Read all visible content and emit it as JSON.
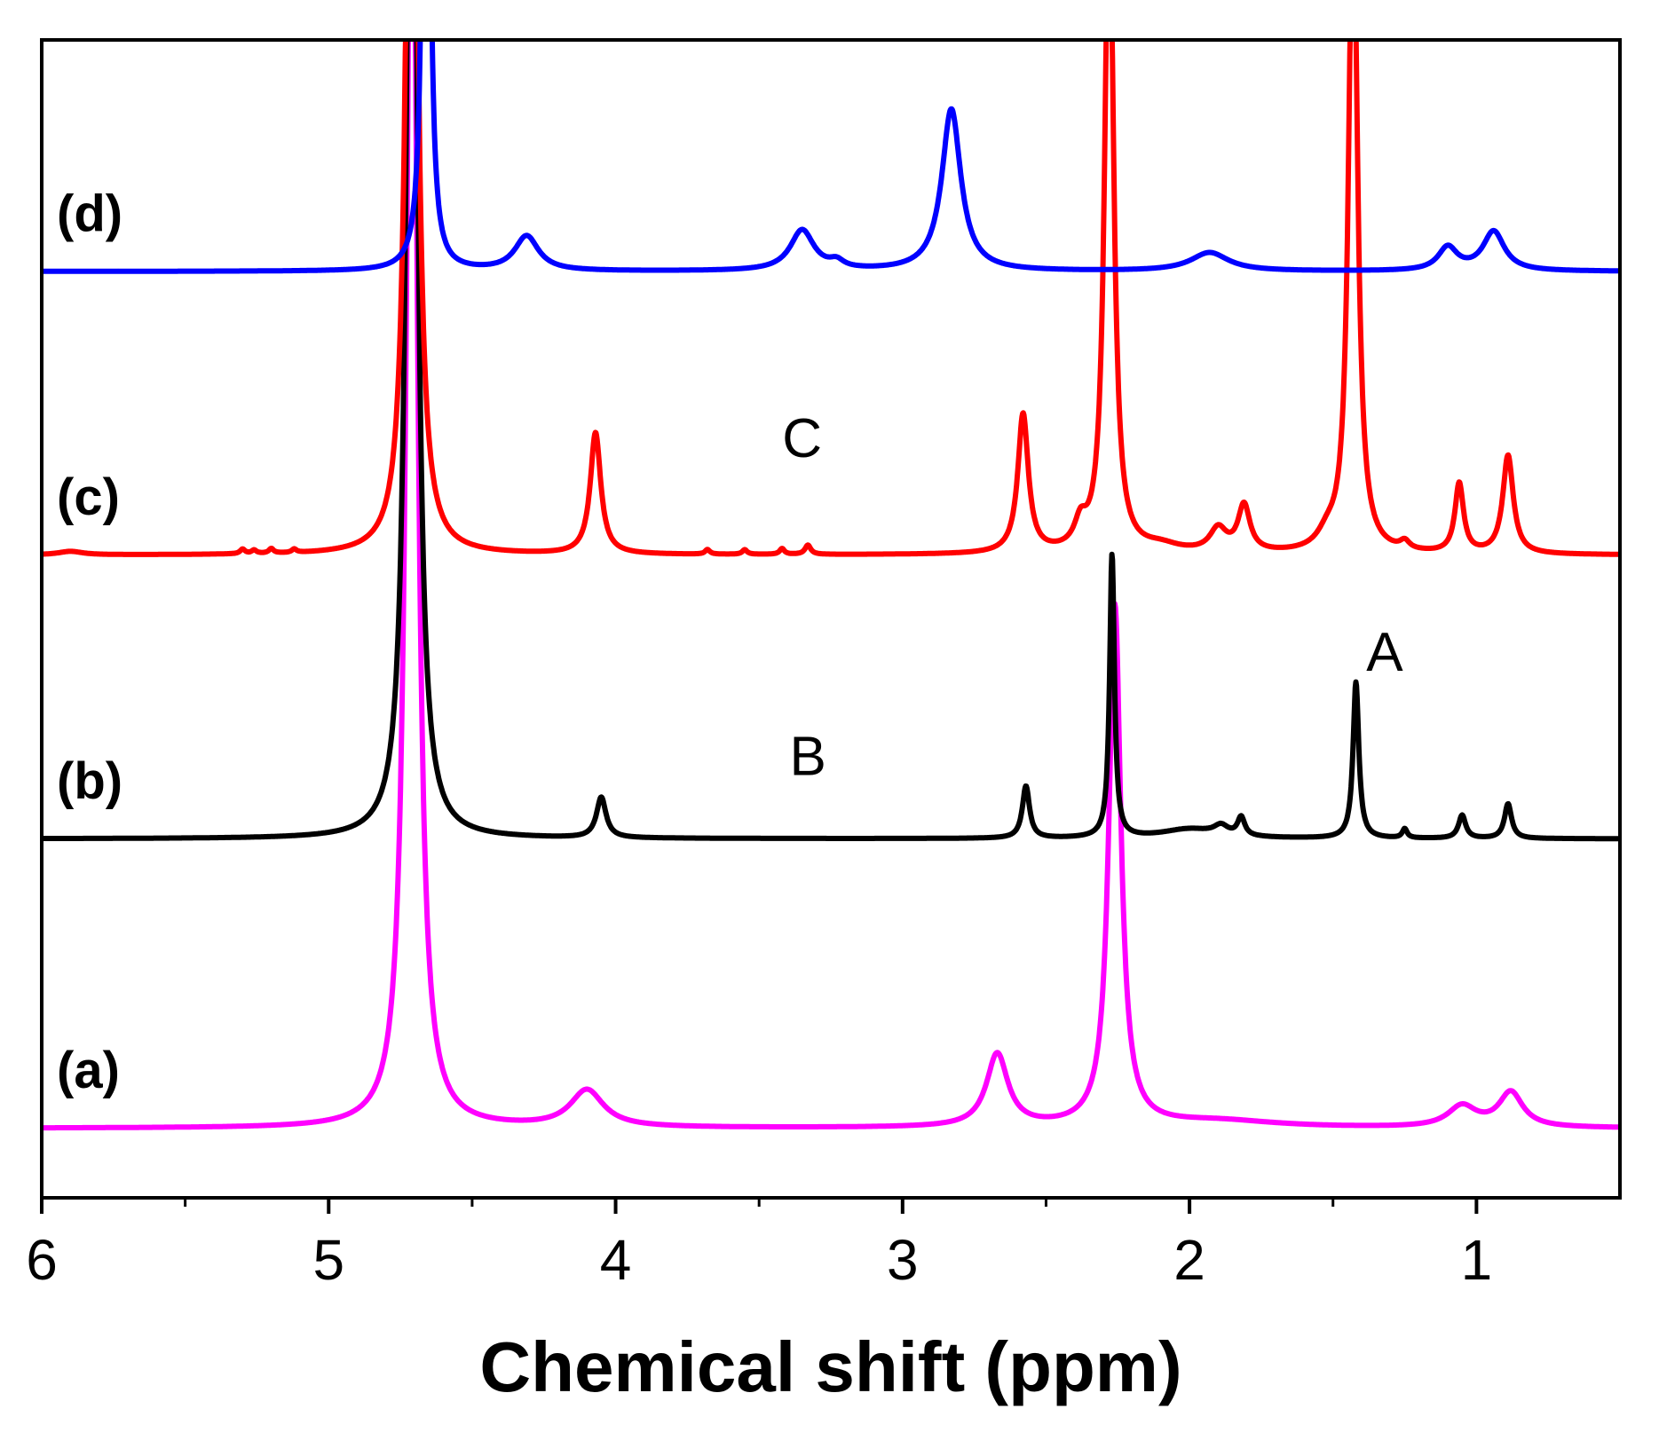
{
  "chart_data": {
    "type": "line",
    "title": "",
    "xlabel": "Chemical shift (ppm)",
    "ylabel": "",
    "xlim": [
      6,
      0.5
    ],
    "x_reversed": true,
    "x_ticks": [
      6,
      5,
      4,
      3,
      2,
      1
    ],
    "x_tick_labels": [
      "6",
      "5",
      "4",
      "3",
      "2",
      "1"
    ],
    "x_minor_ticks": [
      5.5,
      4.5,
      3.5,
      2.5,
      1.5
    ],
    "grid": false,
    "legend": "none",
    "series": [
      {
        "name": "(a)",
        "color": "#ff00ff",
        "offset": 0.06,
        "peaks": [
          {
            "x": 4.71,
            "h": 1.25,
            "w": 0.022
          },
          {
            "x": 4.1,
            "h": 0.032,
            "w": 0.07
          },
          {
            "x": 2.67,
            "h": 0.063,
            "w": 0.045
          },
          {
            "x": 2.26,
            "h": 0.45,
            "w": 0.025
          },
          {
            "x": 1.9,
            "h": 0.006,
            "w": 0.25
          },
          {
            "x": 1.05,
            "h": 0.018,
            "w": 0.06
          },
          {
            "x": 0.88,
            "h": 0.03,
            "w": 0.05
          }
        ]
      },
      {
        "name": "(b)",
        "color": "#000000",
        "offset": 0.31,
        "peaks": [
          {
            "x": 4.71,
            "h": 1.2,
            "w": 0.02
          },
          {
            "x": 4.05,
            "h": 0.035,
            "w": 0.02
          },
          {
            "x": 2.57,
            "h": 0.045,
            "w": 0.015
          },
          {
            "x": 2.27,
            "h": 0.245,
            "w": 0.01
          },
          {
            "x": 2.0,
            "h": 0.008,
            "w": 0.12
          },
          {
            "x": 1.89,
            "h": 0.008,
            "w": 0.03
          },
          {
            "x": 1.82,
            "h": 0.016,
            "w": 0.015
          },
          {
            "x": 1.42,
            "h": 0.135,
            "w": 0.012
          },
          {
            "x": 1.25,
            "h": 0.008,
            "w": 0.01
          },
          {
            "x": 1.05,
            "h": 0.02,
            "w": 0.015
          },
          {
            "x": 0.89,
            "h": 0.03,
            "w": 0.015
          }
        ]
      },
      {
        "name": "(c)",
        "color": "#ff0000",
        "offset": 0.555,
        "peaks": [
          {
            "x": 5.9,
            "h": 0.003,
            "w": 0.05
          },
          {
            "x": 5.3,
            "h": 0.004,
            "w": 0.01
          },
          {
            "x": 5.26,
            "h": 0.003,
            "w": 0.01
          },
          {
            "x": 5.2,
            "h": 0.004,
            "w": 0.01
          },
          {
            "x": 5.12,
            "h": 0.003,
            "w": 0.01
          },
          {
            "x": 4.71,
            "h": 1.0,
            "w": 0.02
          },
          {
            "x": 4.07,
            "h": 0.105,
            "w": 0.022
          },
          {
            "x": 3.68,
            "h": 0.004,
            "w": 0.01
          },
          {
            "x": 3.55,
            "h": 0.004,
            "w": 0.01
          },
          {
            "x": 3.42,
            "h": 0.005,
            "w": 0.01
          },
          {
            "x": 3.33,
            "h": 0.008,
            "w": 0.012
          },
          {
            "x": 2.58,
            "h": 0.12,
            "w": 0.022
          },
          {
            "x": 2.38,
            "h": 0.02,
            "w": 0.025
          },
          {
            "x": 2.28,
            "h": 0.6,
            "w": 0.018
          },
          {
            "x": 2.1,
            "h": 0.006,
            "w": 0.08
          },
          {
            "x": 1.9,
            "h": 0.02,
            "w": 0.035
          },
          {
            "x": 1.81,
            "h": 0.04,
            "w": 0.025
          },
          {
            "x": 1.52,
            "h": 0.012,
            "w": 0.04
          },
          {
            "x": 1.43,
            "h": 0.6,
            "w": 0.018
          },
          {
            "x": 1.25,
            "h": 0.007,
            "w": 0.02
          },
          {
            "x": 1.06,
            "h": 0.06,
            "w": 0.018
          },
          {
            "x": 0.89,
            "h": 0.085,
            "w": 0.022
          }
        ]
      },
      {
        "name": "(d)",
        "color": "#0000ff",
        "offset": 0.8,
        "peaks": [
          {
            "x": 4.66,
            "h": 0.8,
            "w": 0.012
          },
          {
            "x": 4.31,
            "h": 0.03,
            "w": 0.05
          },
          {
            "x": 3.35,
            "h": 0.035,
            "w": 0.05
          },
          {
            "x": 3.23,
            "h": 0.006,
            "w": 0.03
          },
          {
            "x": 2.83,
            "h": 0.14,
            "w": 0.04
          },
          {
            "x": 1.93,
            "h": 0.016,
            "w": 0.08
          },
          {
            "x": 1.1,
            "h": 0.02,
            "w": 0.04
          },
          {
            "x": 0.94,
            "h": 0.034,
            "w": 0.045
          }
        ]
      }
    ],
    "annotations": [
      {
        "text": "A",
        "x": 1.32,
        "y": 0.455
      },
      {
        "text": "B",
        "x": 3.33,
        "y": 0.365
      },
      {
        "text": "C",
        "x": 3.35,
        "y": 0.64
      }
    ]
  }
}
